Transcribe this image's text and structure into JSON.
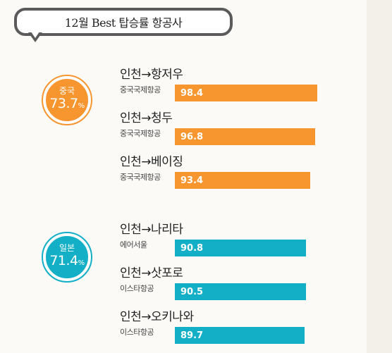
{
  "title": "12월 Best 탑승률 항공사",
  "colors": {
    "china": "#f7962f",
    "japan": "#13afc6"
  },
  "chart_data": {
    "type": "bar",
    "title": "12월 Best 탑승률 항공사",
    "xlim": [
      0,
      100
    ],
    "groups": [
      {
        "name": "중국",
        "value": "73.7",
        "unit": "%",
        "color": "#f7962f",
        "items": [
          {
            "route": "인천→항저우",
            "airline": "중국국제항공",
            "value": 98.4
          },
          {
            "route": "인천→청두",
            "airline": "중국국제항공",
            "value": 96.8
          },
          {
            "route": "인천→베이징",
            "airline": "중국국제항공",
            "value": 93.4
          }
        ]
      },
      {
        "name": "일본",
        "value": "71.4",
        "unit": "%",
        "color": "#13afc6",
        "items": [
          {
            "route": "인천→나리타",
            "airline": "에어서울",
            "value": 90.8
          },
          {
            "route": "인천→삿포로",
            "airline": "이스타항공",
            "value": 90.5
          },
          {
            "route": "인천→오키나와",
            "airline": "이스타항공",
            "value": 89.7
          }
        ]
      }
    ]
  }
}
